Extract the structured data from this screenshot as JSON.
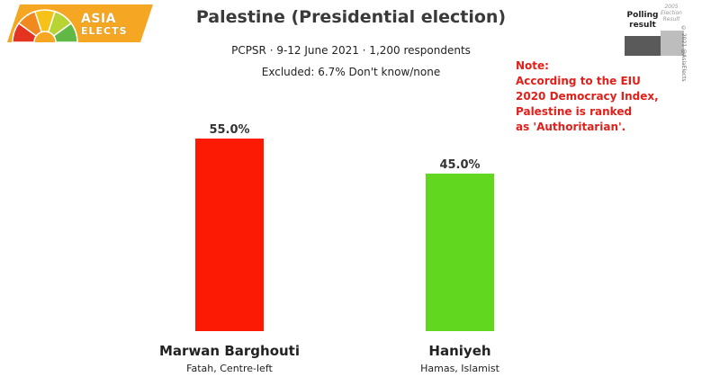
{
  "logo": {
    "line1": "ASIA",
    "line2": "ELECTS",
    "colors": [
      "#e53321",
      "#f08a1e",
      "#f5c21a",
      "#b7d334",
      "#61b845"
    ]
  },
  "header": {
    "title": "Palestine (Presidential election)",
    "subtitle": "PCPSR · 9-12 June 2021 · 1,200 respondents",
    "excluded": "Excluded: 6.7% Don't know/none"
  },
  "legend": {
    "polling_label_1": "Polling",
    "polling_label_2": "result",
    "election_label_1": "2005",
    "election_label_2": "Election",
    "election_label_3": "Result",
    "copyright": "© 2021 @AsiaElects"
  },
  "note": {
    "line1": "Note:",
    "line2": "According to the EIU",
    "line3": "2020 Democracy Index,",
    "line4": "Palestine is ranked",
    "line5": "as 'Authoritarian'."
  },
  "chart_data": {
    "type": "bar",
    "categories": [
      "Marwan Barghouti",
      "Haniyeh"
    ],
    "category_sublabels": [
      "Fatah, Centre-left",
      "Hamas, Islamist"
    ],
    "values": [
      55.0,
      45.0
    ],
    "value_labels": [
      "55.0%",
      "45.0%"
    ],
    "colors": [
      "#fc1a05",
      "#61d81f"
    ],
    "ylim": [
      0,
      55.0
    ],
    "grid": false
  }
}
